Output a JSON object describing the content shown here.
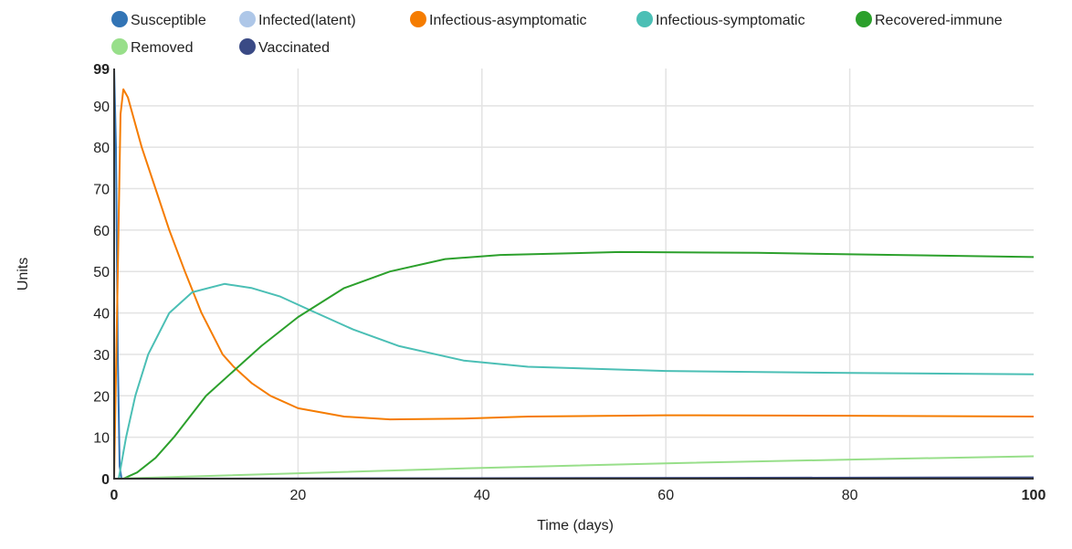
{
  "chart_data": {
    "type": "line",
    "xlabel": "Time (days)",
    "ylabel": "Units",
    "xlim": [
      0,
      100
    ],
    "ylim": [
      0,
      99
    ],
    "xticks": [
      0,
      20,
      40,
      60,
      80,
      100
    ],
    "yticks": [
      0,
      10,
      20,
      30,
      40,
      50,
      60,
      70,
      80,
      90,
      99
    ],
    "grid": true,
    "legend_position": "top",
    "series": [
      {
        "name": "Susceptible",
        "color": "#3274b5",
        "points": [
          [
            0,
            99
          ],
          [
            0.2,
            80
          ],
          [
            0.4,
            30
          ],
          [
            0.6,
            3
          ],
          [
            0.8,
            0
          ],
          [
            100,
            0
          ]
        ]
      },
      {
        "name": "Infected(latent)",
        "color": "#aec7e8",
        "points": [
          [
            0,
            0
          ],
          [
            100,
            0
          ]
        ]
      },
      {
        "name": "Infectious-asymptomatic",
        "color": "#f57c00",
        "points": [
          [
            0,
            0
          ],
          [
            0.4,
            50
          ],
          [
            0.7,
            88
          ],
          [
            1,
            94
          ],
          [
            1.5,
            92
          ],
          [
            3,
            80
          ],
          [
            4.5,
            70
          ],
          [
            6,
            60
          ],
          [
            7.7,
            50
          ],
          [
            9.5,
            40
          ],
          [
            11.8,
            30
          ],
          [
            13,
            27
          ],
          [
            15,
            23
          ],
          [
            17,
            20
          ],
          [
            20,
            17
          ],
          [
            25,
            15
          ],
          [
            30,
            14.3
          ],
          [
            38,
            14.5
          ],
          [
            45,
            15
          ],
          [
            60,
            15.3
          ],
          [
            80,
            15.2
          ],
          [
            100,
            15
          ]
        ]
      },
      {
        "name": "Infectious-symptomatic",
        "color": "#4bbfb5",
        "points": [
          [
            0,
            0
          ],
          [
            0.5,
            0
          ],
          [
            1.3,
            10
          ],
          [
            2.3,
            20
          ],
          [
            3.7,
            30
          ],
          [
            6,
            40
          ],
          [
            8.5,
            45
          ],
          [
            12,
            47
          ],
          [
            15,
            46
          ],
          [
            18,
            44
          ],
          [
            21,
            41
          ],
          [
            26,
            36
          ],
          [
            31,
            32
          ],
          [
            38,
            28.5
          ],
          [
            45,
            27
          ],
          [
            60,
            26
          ],
          [
            80,
            25.5
          ],
          [
            100,
            25.2
          ]
        ]
      },
      {
        "name": "Recovered-immune",
        "color": "#2ca02c",
        "points": [
          [
            0,
            0
          ],
          [
            1,
            0
          ],
          [
            2.5,
            1.5
          ],
          [
            4.5,
            5
          ],
          [
            6.5,
            10
          ],
          [
            10,
            20
          ],
          [
            13.5,
            27
          ],
          [
            16,
            32
          ],
          [
            20,
            39
          ],
          [
            25,
            46
          ],
          [
            30,
            50
          ],
          [
            36,
            53
          ],
          [
            42,
            54
          ],
          [
            55,
            54.7
          ],
          [
            70,
            54.5
          ],
          [
            85,
            54
          ],
          [
            100,
            53.5
          ]
        ]
      },
      {
        "name": "Removed",
        "color": "#98df8a",
        "points": [
          [
            0,
            0
          ],
          [
            20,
            1.3
          ],
          [
            40,
            2.6
          ],
          [
            60,
            3.7
          ],
          [
            80,
            4.6
          ],
          [
            100,
            5.4
          ]
        ]
      },
      {
        "name": "Vaccinated",
        "color": "#3a4a85",
        "points": [
          [
            0,
            0
          ],
          [
            100,
            0.3
          ]
        ]
      }
    ]
  }
}
